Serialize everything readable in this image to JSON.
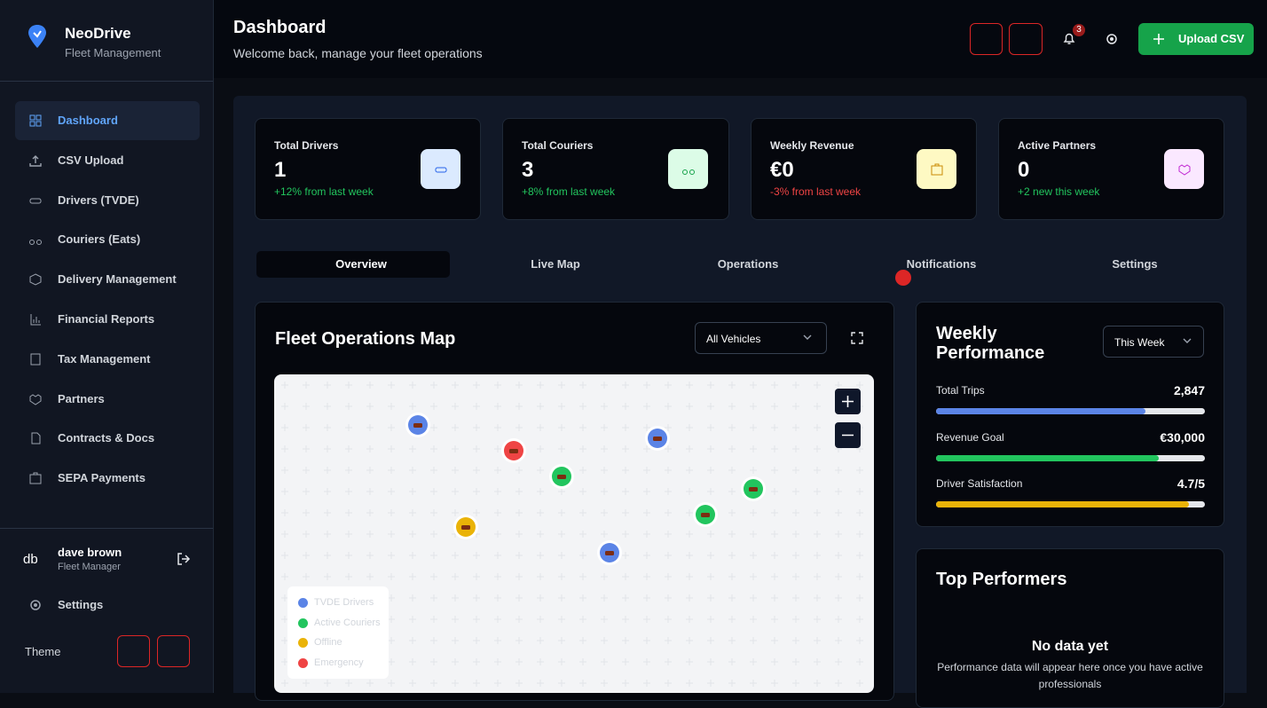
{
  "sidebar": {
    "brand": "NeoDrive",
    "subtitle": "Fleet Management",
    "nav": [
      "Dashboard",
      "CSV Upload",
      "Drivers (TVDE)",
      "Couriers (Eats)",
      "Delivery Management",
      "Financial Reports",
      "Tax Management",
      "Partners",
      "Contracts & Docs",
      "SEPA Payments"
    ],
    "user": {
      "initials": "db",
      "name": "dave brown",
      "role": "Fleet Manager"
    },
    "settings": "Settings",
    "theme": "Theme"
  },
  "header": {
    "title": "Dashboard",
    "subtitle": "Welcome back, manage your fleet operations",
    "notification_count": 3,
    "upload": "Upload CSV"
  },
  "stats": [
    {
      "label": "Total Drivers",
      "value": 1,
      "change": "+12% from last week"
    },
    {
      "label": "Total Couriers",
      "value": 3,
      "change": "+8% from last week"
    },
    {
      "label": "Weekly Revenue",
      "value": "€0",
      "change": "-3% from last week"
    },
    {
      "label": "Active Partners",
      "value": 0,
      "change": "+2 new this week"
    }
  ],
  "tabs": [
    "Overview",
    "Live Map",
    "Operations",
    "Notifications",
    "Settings"
  ],
  "map": {
    "title": "Fleet Operations Map",
    "filter": "All Vehicles",
    "legend": [
      "TVDE Drivers",
      "Active Couriers",
      "Offline",
      "Emergency"
    ]
  },
  "weekly": {
    "title": "Weekly Performance",
    "period": "This Week",
    "metrics": [
      {
        "label": "Total Trips",
        "value": "2,847",
        "progress": 78
      },
      {
        "label": "Revenue Goal",
        "value": "€30,000",
        "progress": 83
      },
      {
        "label": "Driver Satisfaction",
        "value": "4.7/5",
        "progress": 94
      }
    ]
  },
  "top": {
    "title": "Top Performers",
    "empty_title": "No data yet",
    "empty_text": "Performance data will appear here once you have active professionals"
  }
}
